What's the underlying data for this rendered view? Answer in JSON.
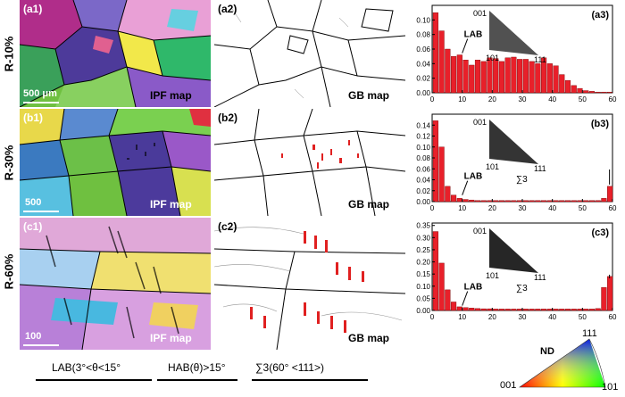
{
  "rows": [
    {
      "label": "R-10%"
    },
    {
      "label": "R-30%"
    },
    {
      "label": "R-60%"
    }
  ],
  "ipf_panels": [
    {
      "id": "(a1)",
      "scale": "500 μm",
      "map_label": "IPF  map"
    },
    {
      "id": "(b1)",
      "scale": "500",
      "map_label": "IPF  map"
    },
    {
      "id": "(c1)",
      "scale": "100",
      "map_label": "IPF  map"
    }
  ],
  "gb_panels": [
    {
      "id": "(a2)",
      "map_label": "GB  map"
    },
    {
      "id": "(b2)",
      "map_label": "GB  map"
    },
    {
      "id": "(c2)",
      "map_label": "GB  map"
    }
  ],
  "chart_data": [
    {
      "type": "bar",
      "panel": "(a3)",
      "x": [
        2,
        4,
        6,
        8,
        10,
        12,
        14,
        16,
        18,
        20,
        22,
        24,
        26,
        28,
        30,
        32,
        34,
        36,
        38,
        40,
        42,
        44,
        46,
        48,
        50,
        52,
        54,
        56,
        58,
        60
      ],
      "values": [
        0.11,
        0.085,
        0.06,
        0.05,
        0.052,
        0.045,
        0.038,
        0.045,
        0.043,
        0.048,
        0.047,
        0.043,
        0.048,
        0.049,
        0.046,
        0.046,
        0.043,
        0.04,
        0.048,
        0.04,
        0.037,
        0.025,
        0.017,
        0.01,
        0.006,
        0.003,
        0.002,
        0.001,
        0.001,
        0.001
      ],
      "ylim": [
        0,
        0.12
      ],
      "yticks": [
        "0.00",
        "0.02",
        "0.04",
        "0.06",
        "0.08",
        "0.10"
      ],
      "xticks": [
        "0",
        "10",
        "20",
        "30",
        "40",
        "50",
        "60"
      ],
      "annotations": [
        "LAB"
      ],
      "inset_labels": [
        "001",
        "101",
        "111"
      ],
      "inset_fill": "#333"
    },
    {
      "type": "bar",
      "panel": "(b3)",
      "x": [
        2,
        4,
        6,
        8,
        10,
        12,
        14,
        16,
        18,
        20,
        22,
        24,
        26,
        28,
        30,
        32,
        34,
        36,
        38,
        40,
        42,
        44,
        46,
        48,
        50,
        52,
        54,
        56,
        58,
        60
      ],
      "values": [
        0.148,
        0.1,
        0.028,
        0.012,
        0.006,
        0.004,
        0.003,
        0.002,
        0.002,
        0.002,
        0.002,
        0.002,
        0.002,
        0.002,
        0.002,
        0.002,
        0.002,
        0.002,
        0.002,
        0.002,
        0.002,
        0.002,
        0.002,
        0.002,
        0.002,
        0.002,
        0.002,
        0.002,
        0.006,
        0.028
      ],
      "ylim": [
        0,
        0.16
      ],
      "yticks": [
        "0.00",
        "0.02",
        "0.04",
        "0.06",
        "0.08",
        "0.10",
        "0.12",
        "0.14"
      ],
      "xticks": [
        "0",
        "10",
        "20",
        "30",
        "40",
        "50",
        "60"
      ],
      "annotations": [
        "LAB",
        "∑3"
      ],
      "inset_labels": [
        "001",
        "101",
        "111"
      ],
      "inset_fill": "#111"
    },
    {
      "type": "bar",
      "panel": "(c3)",
      "x": [
        2,
        4,
        6,
        8,
        10,
        12,
        14,
        16,
        18,
        20,
        22,
        24,
        26,
        28,
        30,
        32,
        34,
        36,
        38,
        40,
        42,
        44,
        46,
        48,
        50,
        52,
        54,
        56,
        58,
        60
      ],
      "values": [
        0.325,
        0.195,
        0.085,
        0.035,
        0.015,
        0.012,
        0.01,
        0.008,
        0.007,
        0.007,
        0.006,
        0.006,
        0.006,
        0.006,
        0.006,
        0.006,
        0.006,
        0.006,
        0.006,
        0.006,
        0.006,
        0.006,
        0.006,
        0.006,
        0.006,
        0.006,
        0.006,
        0.008,
        0.095,
        0.14
      ],
      "ylim": [
        0,
        0.36
      ],
      "yticks": [
        "0.00",
        "0.05",
        "0.10",
        "0.15",
        "0.20",
        "0.25",
        "0.30",
        "0.35"
      ],
      "xticks": [
        "0",
        "10",
        "20",
        "30",
        "40",
        "50",
        "60"
      ],
      "annotations": [
        "LAB",
        "∑3"
      ],
      "inset_labels": [
        "001",
        "101",
        "111"
      ],
      "inset_fill": "#000"
    }
  ],
  "legend": {
    "lab": "LAB(3°<θ<15°",
    "hab": "HAB(θ)>15°",
    "sigma3": "∑3(60°  <111>)"
  },
  "key": {
    "axis": "ND",
    "v001": "001",
    "v101": "101",
    "v111": "111"
  },
  "colors": {
    "bar": "#e8202a",
    "sigma3": "#ff0000",
    "text": "#000000"
  }
}
